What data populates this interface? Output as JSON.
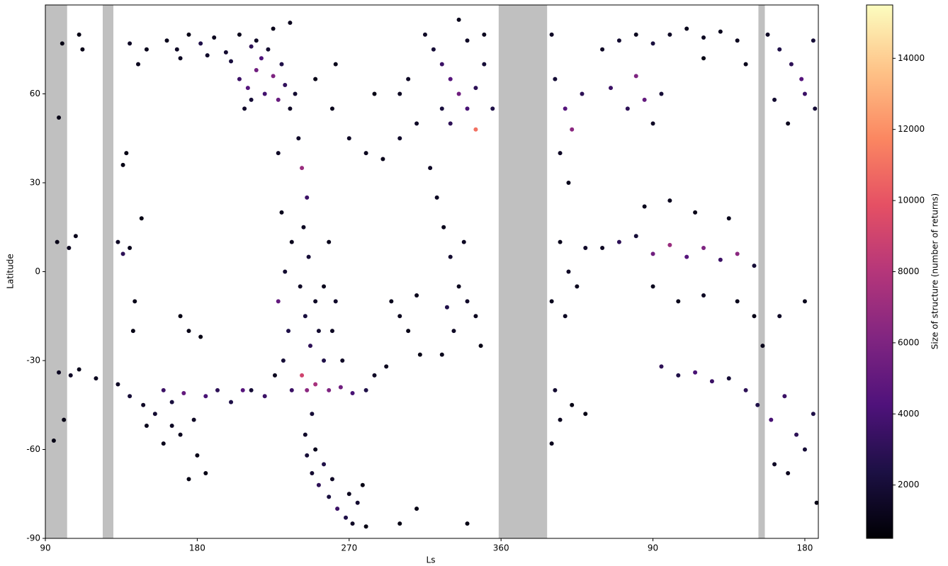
{
  "chart_data": {
    "type": "scatter",
    "xlabel": "Ls",
    "ylabel": "Latitude",
    "colorbar_label": "Size of structure (number of returns)",
    "colormap": "magma",
    "xlim": [
      90,
      548
    ],
    "ylim": [
      -90,
      90
    ],
    "clim": [
      500,
      15500
    ],
    "xticks": [
      90,
      180,
      270,
      360,
      {
        "value": 450,
        "label": "90"
      },
      {
        "value": 540,
        "label": "180"
      }
    ],
    "yticks": [
      -90,
      -60,
      -30,
      0,
      30,
      60
    ],
    "cticks": [
      2000,
      4000,
      6000,
      8000,
      10000,
      12000,
      14000
    ],
    "shaded_spans": [
      [
        90,
        102.9
      ],
      [
        124,
        130.3
      ],
      [
        358.6,
        387.3
      ],
      [
        512.5,
        516.3
      ]
    ],
    "shade_color": "#c0c0c0",
    "points": [
      [
        162,
        78,
        1200
      ],
      [
        168,
        75,
        1500
      ],
      [
        175,
        80,
        1100
      ],
      [
        182,
        77,
        2500
      ],
      [
        190,
        79,
        1300
      ],
      [
        197,
        74,
        1800
      ],
      [
        205,
        80,
        1200
      ],
      [
        212,
        76,
        3000
      ],
      [
        170,
        72,
        1400
      ],
      [
        186,
        73,
        1600
      ],
      [
        200,
        71,
        2200
      ],
      [
        215,
        78,
        1500
      ],
      [
        205,
        65,
        3500
      ],
      [
        210,
        62,
        4500
      ],
      [
        215,
        68,
        5500
      ],
      [
        220,
        60,
        3800
      ],
      [
        225,
        66,
        6000
      ],
      [
        230,
        70,
        2500
      ],
      [
        218,
        72,
        4200
      ],
      [
        228,
        58,
        5200
      ],
      [
        212,
        58,
        2000
      ],
      [
        222,
        75,
        1800
      ],
      [
        232,
        63,
        3200
      ],
      [
        235,
        55,
        1500
      ],
      [
        208,
        55,
        1600
      ],
      [
        225,
        82,
        1200
      ],
      [
        235,
        84,
        1300
      ],
      [
        150,
        75,
        1200
      ],
      [
        140,
        77,
        1500
      ],
      [
        145,
        70,
        1300
      ],
      [
        110,
        80,
        1000
      ],
      [
        112,
        75,
        1100
      ],
      [
        100,
        77,
        1000
      ],
      [
        98,
        52,
        1000
      ],
      [
        97,
        10,
        1100
      ],
      [
        104,
        8,
        1300
      ],
      [
        108,
        12,
        1200
      ],
      [
        98,
        -34,
        1400
      ],
      [
        105,
        -35,
        1500
      ],
      [
        110,
        -33,
        1200
      ],
      [
        120,
        -36,
        1300
      ],
      [
        101,
        -50,
        1000
      ],
      [
        95,
        -57,
        1000
      ],
      [
        133,
        10,
        1500
      ],
      [
        136,
        6,
        3000
      ],
      [
        140,
        8,
        1200
      ],
      [
        138,
        40,
        1000
      ],
      [
        136,
        36,
        1000
      ],
      [
        147,
        18,
        1000
      ],
      [
        143,
        -10,
        1100
      ],
      [
        142,
        -20,
        1000
      ],
      [
        170,
        -15,
        1000
      ],
      [
        175,
        -20,
        1100
      ],
      [
        182,
        -22,
        1000
      ],
      [
        133,
        -38,
        1500
      ],
      [
        140,
        -42,
        2000
      ],
      [
        148,
        -45,
        1500
      ],
      [
        155,
        -48,
        1800
      ],
      [
        160,
        -40,
        3500
      ],
      [
        165,
        -44,
        2200
      ],
      [
        172,
        -41,
        5000
      ],
      [
        178,
        -50,
        1500
      ],
      [
        185,
        -42,
        4000
      ],
      [
        192,
        -40,
        3000
      ],
      [
        200,
        -44,
        2500
      ],
      [
        207,
        -40,
        4500
      ],
      [
        170,
        -55,
        1300
      ],
      [
        160,
        -58,
        1200
      ],
      [
        180,
        -62,
        1100
      ],
      [
        175,
        -70,
        1000
      ],
      [
        185,
        -68,
        1000
      ],
      [
        150,
        -52,
        1200
      ],
      [
        165,
        -52,
        1400
      ],
      [
        228,
        40,
        1500
      ],
      [
        230,
        20,
        1200
      ],
      [
        232,
        0,
        1800
      ],
      [
        228,
        -10,
        5000
      ],
      [
        234,
        -20,
        2500
      ],
      [
        231,
        -30,
        2000
      ],
      [
        236,
        -40,
        3500
      ],
      [
        226,
        -35,
        1300
      ],
      [
        240,
        45,
        1600
      ],
      [
        242,
        35,
        7000
      ],
      [
        245,
        25,
        3500
      ],
      [
        243,
        15,
        1400
      ],
      [
        246,
        5,
        2000
      ],
      [
        241,
        -5,
        1500
      ],
      [
        244,
        -15,
        2200
      ],
      [
        247,
        -25,
        3000
      ],
      [
        242,
        -35,
        9000
      ],
      [
        245,
        -40,
        6500
      ],
      [
        248,
        -48,
        2000
      ],
      [
        244,
        -55,
        1600
      ],
      [
        238,
        60,
        1800
      ],
      [
        236,
        10,
        1200
      ],
      [
        250,
        -10,
        1500
      ],
      [
        252,
        -20,
        1800
      ],
      [
        255,
        -5,
        1200
      ],
      [
        255,
        -30,
        2500
      ],
      [
        260,
        -20,
        1400
      ],
      [
        258,
        10,
        1200
      ],
      [
        262,
        -10,
        1600
      ],
      [
        266,
        -30,
        1500
      ],
      [
        212,
        -40,
        2000
      ],
      [
        220,
        -42,
        3500
      ],
      [
        250,
        -38,
        7500
      ],
      [
        258,
        -40,
        6000
      ],
      [
        265,
        -39,
        5500
      ],
      [
        272,
        -41,
        4000
      ],
      [
        280,
        -40,
        2500
      ],
      [
        285,
        -35,
        1500
      ],
      [
        292,
        -32,
        1300
      ],
      [
        245,
        -62,
        2000
      ],
      [
        248,
        -68,
        1800
      ],
      [
        252,
        -72,
        3000
      ],
      [
        258,
        -76,
        2200
      ],
      [
        263,
        -80,
        3500
      ],
      [
        268,
        -83,
        2500
      ],
      [
        272,
        -85,
        1500
      ],
      [
        275,
        -78,
        1800
      ],
      [
        250,
        -60,
        1200
      ],
      [
        255,
        -65,
        2500
      ],
      [
        260,
        -70,
        1500
      ],
      [
        270,
        -75,
        1300
      ],
      [
        278,
        -72,
        1000
      ],
      [
        280,
        -86,
        1000
      ],
      [
        300,
        -85,
        1000
      ],
      [
        310,
        -80,
        1000
      ],
      [
        340,
        -85,
        1000
      ],
      [
        260,
        55,
        1200
      ],
      [
        270,
        45,
        1500
      ],
      [
        280,
        40,
        1300
      ],
      [
        290,
        38,
        1200
      ],
      [
        300,
        45,
        1600
      ],
      [
        305,
        65,
        1500
      ],
      [
        300,
        60,
        1400
      ],
      [
        262,
        70,
        1200
      ],
      [
        250,
        65,
        1100
      ],
      [
        285,
        60,
        1000
      ],
      [
        315,
        80,
        1500
      ],
      [
        320,
        75,
        2000
      ],
      [
        325,
        70,
        3500
      ],
      [
        330,
        65,
        4500
      ],
      [
        335,
        60,
        5500
      ],
      [
        340,
        55,
        4000
      ],
      [
        345,
        62,
        3000
      ],
      [
        350,
        70,
        2000
      ],
      [
        340,
        78,
        1500
      ],
      [
        330,
        50,
        3000
      ],
      [
        345,
        48,
        11000
      ],
      [
        355,
        55,
        2500
      ],
      [
        325,
        55,
        2200
      ],
      [
        335,
        85,
        1200
      ],
      [
        350,
        80,
        1300
      ],
      [
        310,
        50,
        1500
      ],
      [
        318,
        35,
        1500
      ],
      [
        322,
        25,
        1400
      ],
      [
        326,
        15,
        1200
      ],
      [
        330,
        5,
        1800
      ],
      [
        335,
        -5,
        1300
      ],
      [
        328,
        -12,
        2500
      ],
      [
        332,
        -20,
        1500
      ],
      [
        325,
        -28,
        1200
      ],
      [
        338,
        10,
        1400
      ],
      [
        340,
        -10,
        1600
      ],
      [
        345,
        -15,
        1300
      ],
      [
        348,
        -25,
        1000
      ],
      [
        295,
        -10,
        1200
      ],
      [
        300,
        -15,
        1300
      ],
      [
        305,
        -20,
        1100
      ],
      [
        310,
        -8,
        1200
      ],
      [
        312,
        -28,
        1100
      ],
      [
        392,
        65,
        2000
      ],
      [
        398,
        55,
        4500
      ],
      [
        402,
        48,
        6500
      ],
      [
        395,
        40,
        1500
      ],
      [
        400,
        30,
        1200
      ],
      [
        408,
        60,
        3000
      ],
      [
        390,
        80,
        1500
      ],
      [
        395,
        10,
        1200
      ],
      [
        400,
        0,
        1500
      ],
      [
        405,
        -5,
        1300
      ],
      [
        410,
        8,
        1600
      ],
      [
        390,
        -10,
        1200
      ],
      [
        398,
        -15,
        1400
      ],
      [
        392,
        -40,
        1800
      ],
      [
        395,
        -50,
        1300
      ],
      [
        390,
        -58,
        1200
      ],
      [
        402,
        -45,
        1000
      ],
      [
        410,
        -48,
        1000
      ],
      [
        420,
        75,
        1500
      ],
      [
        430,
        78,
        1800
      ],
      [
        440,
        80,
        1300
      ],
      [
        450,
        77,
        2200
      ],
      [
        460,
        80,
        1500
      ],
      [
        470,
        82,
        1200
      ],
      [
        480,
        79,
        1400
      ],
      [
        490,
        81,
        1200
      ],
      [
        500,
        78,
        1300
      ],
      [
        425,
        62,
        3500
      ],
      [
        435,
        55,
        3000
      ],
      [
        445,
        58,
        5000
      ],
      [
        455,
        60,
        2000
      ],
      [
        450,
        50,
        1500
      ],
      [
        440,
        66,
        6000
      ],
      [
        420,
        8,
        1400
      ],
      [
        430,
        10,
        3000
      ],
      [
        440,
        12,
        2000
      ],
      [
        450,
        6,
        5500
      ],
      [
        460,
        9,
        7000
      ],
      [
        470,
        5,
        4500
      ],
      [
        480,
        8,
        6000
      ],
      [
        490,
        4,
        3500
      ],
      [
        500,
        6,
        6500
      ],
      [
        510,
        2,
        2000
      ],
      [
        450,
        -5,
        1300
      ],
      [
        465,
        -10,
        1200
      ],
      [
        480,
        -8,
        1400
      ],
      [
        445,
        22,
        1200
      ],
      [
        460,
        24,
        1300
      ],
      [
        475,
        20,
        1100
      ],
      [
        495,
        18,
        1200
      ],
      [
        455,
        -32,
        3000
      ],
      [
        465,
        -35,
        2500
      ],
      [
        475,
        -34,
        4000
      ],
      [
        485,
        -37,
        3500
      ],
      [
        495,
        -36,
        2000
      ],
      [
        505,
        -40,
        3000
      ],
      [
        512,
        -45,
        2500
      ],
      [
        520,
        -50,
        4000
      ],
      [
        528,
        -42,
        3500
      ],
      [
        535,
        -55,
        3000
      ],
      [
        540,
        -60,
        2000
      ],
      [
        545,
        -48,
        2500
      ],
      [
        522,
        -65,
        1500
      ],
      [
        530,
        -68,
        1300
      ],
      [
        515,
        -25,
        1200
      ],
      [
        525,
        -15,
        1500
      ],
      [
        540,
        -10,
        1200
      ],
      [
        547,
        -78,
        1000
      ],
      [
        518,
        80,
        1500
      ],
      [
        525,
        75,
        2500
      ],
      [
        532,
        70,
        3000
      ],
      [
        538,
        65,
        4500
      ],
      [
        545,
        78,
        2000
      ],
      [
        522,
        58,
        1800
      ],
      [
        530,
        50,
        1300
      ],
      [
        540,
        60,
        3500
      ],
      [
        546,
        55,
        2000
      ],
      [
        505,
        70,
        1200
      ],
      [
        480,
        72,
        1000
      ],
      [
        500,
        -10,
        1200
      ],
      [
        510,
        -15,
        1100
      ]
    ]
  }
}
